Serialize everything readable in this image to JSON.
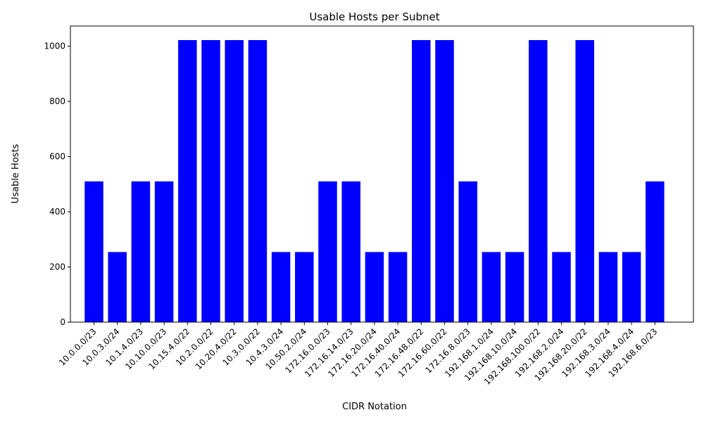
{
  "chart_data": {
    "type": "bar",
    "title": "Usable Hosts per Subnet",
    "xlabel": "CIDR Notation",
    "ylabel": "Usable Hosts",
    "categories": [
      "10.0.0.0/23",
      "10.0.3.0/24",
      "10.1.4.0/23",
      "10.10.0.0/23",
      "10.15.4.0/22",
      "10.2.0.0/22",
      "10.20.4.0/22",
      "10.3.0.0/22",
      "10.4.3.0/24",
      "10.50.2.0/24",
      "172.16.0.0/23",
      "172.16.14.0/23",
      "172.16.20.0/24",
      "172.16.40.0/24",
      "172.16.48.0/22",
      "172.16.60.0/22",
      "172.16.8.0/23",
      "192.168.1.0/24",
      "192.168.10.0/24",
      "192.168.100.0/22",
      "192.168.2.0/24",
      "192.168.20.0/22",
      "192.168.3.0/24",
      "192.168.4.0/24",
      "192.168.6.0/23"
    ],
    "values": [
      510,
      254,
      510,
      510,
      1022,
      1022,
      1022,
      1022,
      254,
      254,
      510,
      510,
      254,
      254,
      1022,
      1022,
      510,
      254,
      254,
      1022,
      254,
      1022,
      254,
      254,
      510
    ],
    "ylim": [
      0,
      1073
    ],
    "yticks": [
      0,
      200,
      400,
      600,
      800,
      1000
    ],
    "bar_color": "#0000ff",
    "grid": false,
    "legend": "none"
  }
}
